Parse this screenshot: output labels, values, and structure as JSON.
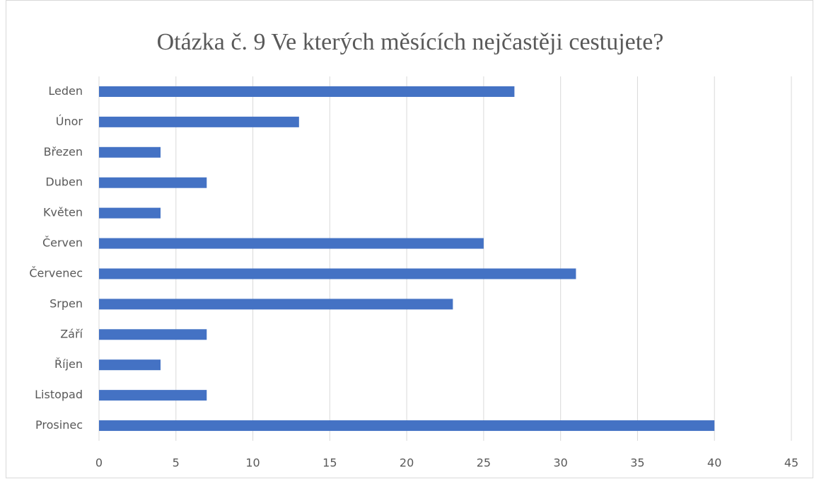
{
  "chart_data": {
    "type": "bar",
    "orientation": "horizontal",
    "title": "Otázka č. 9 Ve kterých měsících nejčastěji cestujete?",
    "categories": [
      "Leden",
      "Únor",
      "Březen",
      "Duben",
      "Květen",
      "Červen",
      "Červenec",
      "Srpen",
      "Září",
      "Říjen",
      "Listopad",
      "Prosinec"
    ],
    "values": [
      27,
      13,
      4,
      7,
      4,
      25,
      31,
      23,
      7,
      4,
      7,
      40
    ],
    "color": "#4472c4",
    "xlim": [
      0,
      45
    ],
    "xticks": [
      0,
      5,
      10,
      15,
      20,
      25,
      30,
      35,
      40,
      45
    ],
    "grid": true
  }
}
